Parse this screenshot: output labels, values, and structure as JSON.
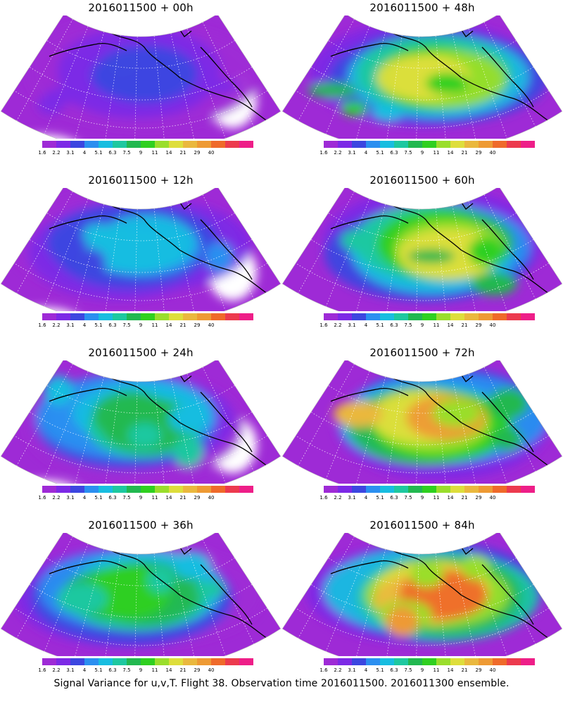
{
  "footer": "Signal Variance for u,v,T. Flight 38. Observation time 2016011500. 2016011300 ensemble.",
  "colorbar": {
    "colors": [
      "#9e2ad6",
      "#7c29e6",
      "#3c46e0",
      "#2b8ff0",
      "#18bde0",
      "#1ec8a0",
      "#22b850",
      "#2fd020",
      "#9ade2c",
      "#dede3c",
      "#eab83e",
      "#ee9a34",
      "#ef6a2a",
      "#ec3a4e",
      "#ee1e88"
    ],
    "labels": [
      "1.6",
      "2.2",
      "3.1",
      "4",
      "5.1",
      "6.3",
      "7.5",
      "9",
      "11",
      "14",
      "21",
      "29",
      "40"
    ]
  },
  "panels": [
    {
      "title": "2016011500 + 00h",
      "level": 0.15
    },
    {
      "title": "2016011500 + 48h",
      "level": 0.6
    },
    {
      "title": "2016011500 + 12h",
      "level": 0.3
    },
    {
      "title": "2016011500 + 60h",
      "level": 0.66
    },
    {
      "title": "2016011500 + 24h",
      "level": 0.45
    },
    {
      "title": "2016011500 + 72h",
      "level": 0.74
    },
    {
      "title": "2016011500 + 36h",
      "level": 0.52
    },
    {
      "title": "2016011500 + 84h",
      "level": 0.8
    }
  ]
}
